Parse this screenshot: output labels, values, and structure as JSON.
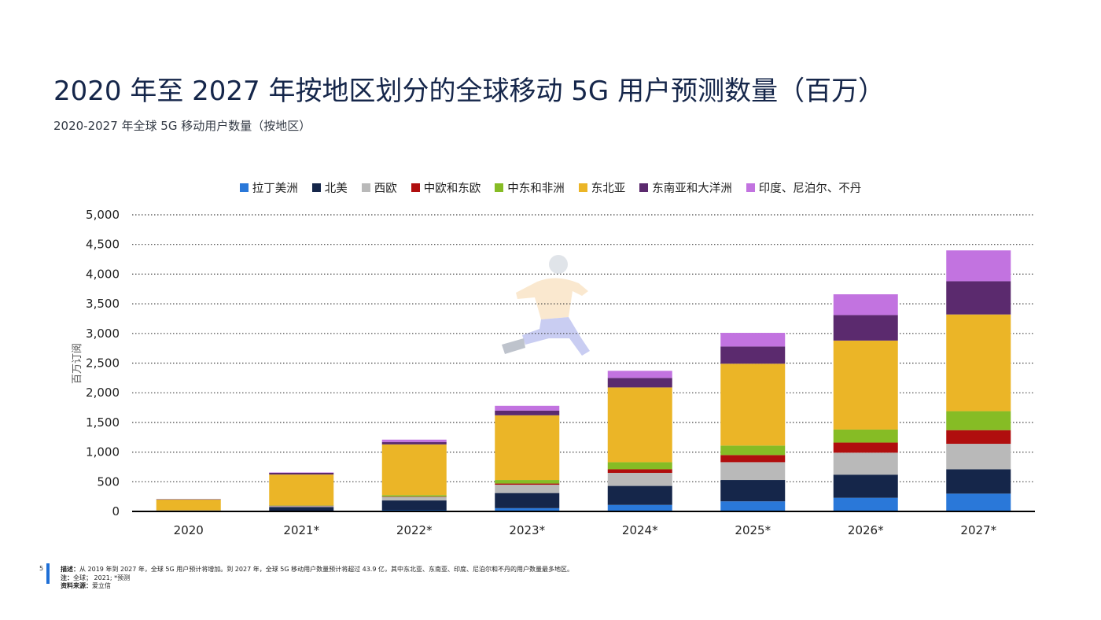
{
  "title": "2020 年至 2027 年按地区划分的全球移动 5G 用户预测数量（百万）",
  "subtitle": "2020-2027 年全球 5G 移动用户数量（按地区）",
  "footer": {
    "page_number": "5",
    "description_label": "描述：",
    "description_text": "从 2019 年到 2027 年，全球 5G 用户预计将增加。到 2027 年，全球 5G 移动用户数量预计将超过 43.9 亿，其中东北亚、东南亚、印度、尼泊尔和不丹的用户数量最多地区。",
    "note_label": "注：",
    "note_text": "全球； 2021; *预测",
    "source_label": "资料来源：",
    "source_text": "爱立信"
  },
  "chart_data": {
    "type": "bar",
    "stacked": true,
    "ylabel": "百万订阅",
    "ylim": [
      0,
      5000
    ],
    "yticks": [
      0,
      500,
      1000,
      1500,
      2000,
      2500,
      3000,
      3500,
      4000,
      4500,
      5000
    ],
    "ytick_labels": [
      "0",
      "500",
      "1,000",
      "1,500",
      "2,000",
      "2,500",
      "3,000",
      "3,500",
      "4,000",
      "4,500",
      "5,000"
    ],
    "grid": "horizontal dotted",
    "legend_position": "top-center",
    "categories": [
      "2020",
      "2021*",
      "2022*",
      "2023*",
      "2024*",
      "2025*",
      "2026*",
      "2027*"
    ],
    "series": [
      {
        "name": "拉丁美洲",
        "color": "#2a78d9",
        "values": [
          0,
          5,
          20,
          55,
          110,
          170,
          230,
          300
        ]
      },
      {
        "name": "北美",
        "color": "#15264a",
        "values": [
          15,
          70,
          165,
          255,
          320,
          360,
          390,
          410
        ]
      },
      {
        "name": "西欧",
        "color": "#b9b9b9",
        "values": [
          3,
          20,
          60,
          140,
          220,
          300,
          370,
          430
        ]
      },
      {
        "name": "中欧和东欧",
        "color": "#b00e0e",
        "values": [
          0,
          2,
          5,
          20,
          60,
          120,
          170,
          230
        ]
      },
      {
        "name": "中东和非洲",
        "color": "#86bc25",
        "values": [
          0,
          5,
          25,
          60,
          120,
          160,
          220,
          320
        ]
      },
      {
        "name": "东北亚",
        "color": "#ebb527",
        "values": [
          185,
          520,
          855,
          1090,
          1260,
          1380,
          1500,
          1630
        ]
      },
      {
        "name": "东南亚和大洋洲",
        "color": "#5b2a6e",
        "values": [
          2,
          30,
          40,
          80,
          160,
          290,
          430,
          560
        ]
      },
      {
        "name": "印度、尼泊尔、不丹",
        "color": "#c273e0",
        "values": [
          0,
          5,
          40,
          80,
          120,
          230,
          350,
          520
        ]
      }
    ]
  }
}
